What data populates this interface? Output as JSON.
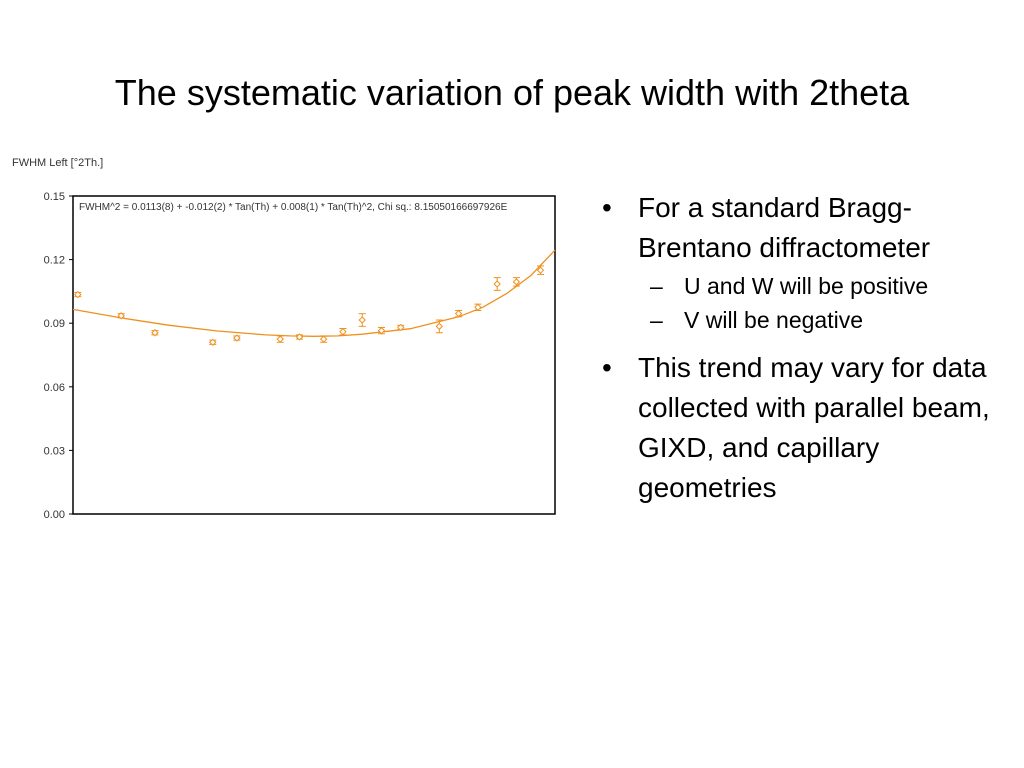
{
  "slide": {
    "title": "The systematic variation of peak width with 2theta"
  },
  "bullets": [
    {
      "text": "For a standard Bragg-Brentano diffractometer",
      "sub": [
        "U and W will be positive",
        "V will be negative"
      ]
    },
    {
      "text": "This trend may vary for data collected with parallel beam, GIXD, and capillary geometries",
      "sub": []
    }
  ],
  "chart_data": {
    "type": "scatter",
    "ylabel": "FWHM Left [°2Th.]",
    "annotation": "FWHM^2 = 0.0113(8) + -0.012(2) * Tan(Th) + 0.008(1) * Tan(Th)^2, Chi sq.: 8.15050166697926E",
    "ylim": [
      0,
      0.15
    ],
    "yticks": [
      "0.00",
      "0.03",
      "0.06",
      "0.09",
      "0.12",
      "0.15"
    ],
    "xlim": [
      0,
      1
    ],
    "grid": false,
    "color": "#f0901e",
    "points": [
      {
        "x": 0.01,
        "y": 0.1035,
        "err": 0.001
      },
      {
        "x": 0.1,
        "y": 0.0935,
        "err": 0.001
      },
      {
        "x": 0.17,
        "y": 0.0855,
        "err": 0.001
      },
      {
        "x": 0.29,
        "y": 0.081,
        "err": 0.001
      },
      {
        "x": 0.34,
        "y": 0.083,
        "err": 0.001
      },
      {
        "x": 0.43,
        "y": 0.0825,
        "err": 0.0015
      },
      {
        "x": 0.47,
        "y": 0.0835,
        "err": 0.001
      },
      {
        "x": 0.52,
        "y": 0.0825,
        "err": 0.0015
      },
      {
        "x": 0.56,
        "y": 0.086,
        "err": 0.0015
      },
      {
        "x": 0.6,
        "y": 0.0915,
        "err": 0.003
      },
      {
        "x": 0.64,
        "y": 0.0865,
        "err": 0.0015
      },
      {
        "x": 0.68,
        "y": 0.088,
        "err": 0.001
      },
      {
        "x": 0.76,
        "y": 0.0885,
        "err": 0.003
      },
      {
        "x": 0.8,
        "y": 0.0945,
        "err": 0.0015
      },
      {
        "x": 0.84,
        "y": 0.0975,
        "err": 0.0015
      },
      {
        "x": 0.88,
        "y": 0.1085,
        "err": 0.003
      },
      {
        "x": 0.92,
        "y": 0.1095,
        "err": 0.002
      },
      {
        "x": 0.97,
        "y": 0.115,
        "err": 0.002
      }
    ],
    "fit_curve": {
      "x": [
        0.0,
        0.1,
        0.2,
        0.3,
        0.4,
        0.45,
        0.5,
        0.55,
        0.6,
        0.7,
        0.8,
        0.85,
        0.9,
        0.95,
        1.0
      ],
      "y": [
        0.0965,
        0.0925,
        0.089,
        0.0863,
        0.0845,
        0.084,
        0.0838,
        0.084,
        0.0848,
        0.0874,
        0.093,
        0.0975,
        0.104,
        0.1125,
        0.1245
      ]
    }
  }
}
